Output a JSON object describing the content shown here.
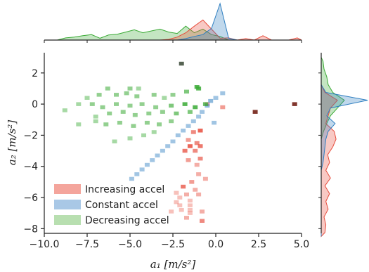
{
  "chart_data": {
    "type": "joint-histogram",
    "xlabel": "a₁ [m/s²]",
    "ylabel": "a₂ [m/s²]",
    "xlim": [
      -10,
      5
    ],
    "ylim": [
      -8.3,
      3.3
    ],
    "xticks": [
      "−10.0",
      "−7.5",
      "−5.0",
      "−2.5",
      "0.0",
      "2.5",
      "5.0"
    ],
    "xtick_values": [
      -10,
      -7.5,
      -5,
      -2.5,
      0,
      2.5,
      5
    ],
    "yticks": [
      "2",
      "0",
      "−2",
      "−4",
      "−6",
      "−8"
    ],
    "ytick_values": [
      2,
      0,
      -2,
      -4,
      -6,
      -8
    ],
    "grid": false,
    "legend_placement": "lower-left",
    "series": [
      {
        "name": "Increasing accel",
        "color": "#e74c3c",
        "light": "#f4a59c",
        "cells": [
          [
            -0.5,
            0,
            0.5
          ],
          [
            0.4,
            -0.2,
            0.5
          ],
          [
            2.3,
            -0.5,
            0.9
          ],
          [
            4.6,
            0,
            0.9
          ],
          [
            -0.9,
            -1.7,
            0.8
          ],
          [
            -1.3,
            -1.8,
            0.6
          ],
          [
            -1.6,
            -2.3,
            0.5
          ],
          [
            -1.1,
            -2.5,
            0.6
          ],
          [
            -1.5,
            -2.7,
            0.8
          ],
          [
            -0.9,
            -2.7,
            0.7
          ],
          [
            -1.2,
            -3.0,
            0.6
          ],
          [
            -1.8,
            -3.0,
            0.7
          ],
          [
            -0.9,
            -3.5,
            0.6
          ],
          [
            -1.6,
            -3.6,
            0.5
          ],
          [
            -1.1,
            -3.9,
            0.4
          ],
          [
            -1.0,
            -4.5,
            0.4
          ],
          [
            -0.6,
            -4.8,
            0.4
          ],
          [
            -1.4,
            -5.0,
            0.5
          ],
          [
            -1.9,
            -5.3,
            0.7
          ],
          [
            -1.2,
            -5.5,
            0.4
          ],
          [
            -2.3,
            -5.7,
            0.3
          ],
          [
            -1.0,
            -5.8,
            0.4
          ],
          [
            -1.7,
            -5.8,
            0.4
          ],
          [
            -2.1,
            -6.0,
            0.3
          ],
          [
            -1.5,
            -6.2,
            0.3
          ],
          [
            -2.3,
            -6.3,
            0.3
          ],
          [
            -1.5,
            -6.5,
            0.3
          ],
          [
            -2.1,
            -6.5,
            0.3
          ],
          [
            -1.5,
            -6.8,
            0.3
          ],
          [
            -2.0,
            -6.8,
            0.3
          ],
          [
            -2.6,
            -6.9,
            0.3
          ],
          [
            -1.5,
            -7.0,
            0.3
          ],
          [
            -0.8,
            -6.9,
            0.4
          ],
          [
            -0.8,
            -7.5,
            0.6
          ],
          [
            -1.7,
            -7.3,
            0.4
          ]
        ]
      },
      {
        "name": "Constant accel",
        "color": "#2f7fc1",
        "light": "#a9c8e6",
        "cells": [
          [
            0.0,
            0.4,
            0.4
          ],
          [
            -0.3,
            0.2,
            0.5
          ],
          [
            -0.5,
            -0.1,
            0.5
          ],
          [
            -0.8,
            -0.5,
            0.4
          ],
          [
            -1.0,
            -0.8,
            0.4
          ],
          [
            -1.3,
            -1.1,
            0.4
          ],
          [
            -1.6,
            -1.4,
            0.4
          ],
          [
            -1.9,
            -1.7,
            0.4
          ],
          [
            -2.2,
            -2.0,
            0.4
          ],
          [
            -2.5,
            -2.4,
            0.4
          ],
          [
            -2.8,
            -2.7,
            0.4
          ],
          [
            -3.1,
            -3.0,
            0.4
          ],
          [
            -3.4,
            -3.3,
            0.4
          ],
          [
            -3.7,
            -3.6,
            0.4
          ],
          [
            -4.0,
            -3.9,
            0.4
          ],
          [
            -4.3,
            -4.2,
            0.4
          ],
          [
            -4.6,
            -4.5,
            0.4
          ],
          [
            -4.9,
            -4.8,
            0.4
          ],
          [
            0.4,
            0.7,
            0.4
          ],
          [
            -0.1,
            -1.2,
            0.4
          ]
        ]
      },
      {
        "name": "Decreasing accel",
        "color": "#3aaa35",
        "light": "#b8dfb0",
        "cells": [
          [
            -2.0,
            2.6,
            0.9
          ],
          [
            -6.3,
            1.0,
            0.5
          ],
          [
            -5.0,
            1.0,
            0.5
          ],
          [
            -4.5,
            1.0,
            0.4
          ],
          [
            -7.5,
            0.4,
            0.4
          ],
          [
            -6.8,
            0.6,
            0.5
          ],
          [
            -5.8,
            0.6,
            0.5
          ],
          [
            -5.2,
            0.7,
            0.5
          ],
          [
            -4.6,
            0.5,
            0.5
          ],
          [
            -3.6,
            0.6,
            0.5
          ],
          [
            -3.0,
            0.4,
            0.4
          ],
          [
            -2.5,
            0.6,
            0.5
          ],
          [
            -1.7,
            0.8,
            0.6
          ],
          [
            -1.0,
            1.0,
            0.8
          ],
          [
            -8.0,
            0,
            0.4
          ],
          [
            -7.2,
            0,
            0.5
          ],
          [
            -6.6,
            -0.2,
            0.5
          ],
          [
            -5.8,
            0,
            0.5
          ],
          [
            -5.0,
            -0.1,
            0.5
          ],
          [
            -4.3,
            0,
            0.5
          ],
          [
            -3.5,
            -0.2,
            0.5
          ],
          [
            -2.6,
            -0.1,
            0.6
          ],
          [
            -1.8,
            0,
            0.8
          ],
          [
            -1.2,
            -0.2,
            0.8
          ],
          [
            -0.6,
            0,
            0.7
          ],
          [
            -8.8,
            -0.4,
            0.4
          ],
          [
            -6.2,
            -0.6,
            0.5
          ],
          [
            -5.4,
            -0.5,
            0.5
          ],
          [
            -4.7,
            -0.7,
            0.5
          ],
          [
            -3.9,
            -0.6,
            0.5
          ],
          [
            -3.1,
            -0.5,
            0.5
          ],
          [
            -2.3,
            -0.6,
            0.6
          ],
          [
            -1.5,
            -0.5,
            0.6
          ],
          [
            -8.0,
            -1.3,
            0.4
          ],
          [
            -7.0,
            -1.1,
            0.4
          ],
          [
            -6.4,
            -1.3,
            0.5
          ],
          [
            -5.6,
            -1.2,
            0.5
          ],
          [
            -4.8,
            -1.4,
            0.5
          ],
          [
            -4.0,
            -1.2,
            0.5
          ],
          [
            -3.3,
            -1.3,
            0.5
          ],
          [
            -2.6,
            -1.1,
            0.5
          ],
          [
            -5.9,
            -2.4,
            0.4
          ],
          [
            -5.0,
            -2.2,
            0.4
          ],
          [
            -4.2,
            -2.0,
            0.4
          ],
          [
            -3.6,
            -1.8,
            0.4
          ],
          [
            -7.0,
            -0.8,
            0.4
          ],
          [
            -1.1,
            1.1,
            0.8
          ]
        ]
      }
    ],
    "marginal_x": {
      "bin_edges": [
        -10,
        -9.5,
        -9,
        -8.5,
        -8,
        -7.5,
        -7,
        -6.5,
        -6,
        -5.5,
        -5,
        -4.5,
        -4,
        -3.5,
        -3,
        -2.5,
        -2,
        -1.5,
        -1,
        -0.5,
        0,
        0.5,
        1,
        1.5,
        2,
        2.5,
        3,
        3.5,
        4,
        4.5,
        5
      ],
      "Increasing accel": [
        0,
        0,
        0,
        0,
        0,
        0,
        0,
        0,
        0,
        0,
        0,
        0,
        0,
        0,
        0.02,
        0.08,
        0.2,
        0.38,
        0.55,
        0.3,
        0.05,
        0.06,
        0,
        0.04,
        0,
        0.12,
        0,
        0,
        0,
        0.06
      ],
      "Constant accel": [
        0,
        0,
        0,
        0,
        0,
        0,
        0,
        0,
        0,
        0,
        0,
        0,
        0,
        0,
        0,
        0,
        0.04,
        0.1,
        0.15,
        0.32,
        1.0,
        0.05,
        0,
        0,
        0,
        0,
        0,
        0,
        0,
        0
      ],
      "Decreasing accel": [
        0,
        0,
        0.06,
        0.08,
        0.12,
        0.15,
        0.05,
        0.14,
        0.16,
        0.22,
        0.28,
        0.2,
        0.25,
        0.3,
        0.22,
        0.18,
        0.38,
        0.2,
        0.3,
        0.15,
        0.1,
        0,
        0,
        0,
        0,
        0,
        0,
        0,
        0,
        0
      ]
    },
    "marginal_y": {
      "bin_edges": [
        -8.5,
        -8,
        -7.5,
        -7,
        -6.5,
        -6,
        -5.5,
        -5,
        -4.5,
        -4,
        -3.5,
        -3,
        -2.5,
        -2,
        -1.5,
        -1,
        -0.5,
        0,
        0.5,
        1,
        1.5,
        2,
        2.5,
        3
      ],
      "Increasing accel": [
        0.08,
        0.1,
        0.06,
        0.15,
        0.1,
        0.18,
        0.08,
        0.2,
        0.1,
        0.18,
        0.14,
        0.25,
        0.32,
        0.28,
        0.1,
        0.15,
        0.2,
        0.35,
        0.08,
        0,
        0,
        0,
        0
      ],
      "Constant accel": [
        0,
        0,
        0,
        0,
        0,
        0,
        0,
        0,
        0,
        0.04,
        0.06,
        0.08,
        0.1,
        0.15,
        0.3,
        0.12,
        0.2,
        1.0,
        0.1,
        0,
        0,
        0,
        0
      ],
      "Decreasing accel": [
        0,
        0,
        0,
        0,
        0,
        0,
        0,
        0,
        0,
        0,
        0,
        0,
        0,
        0.05,
        0.12,
        0.2,
        0.35,
        0.5,
        0.25,
        0.15,
        0.12,
        0.06,
        0.04
      ]
    }
  }
}
